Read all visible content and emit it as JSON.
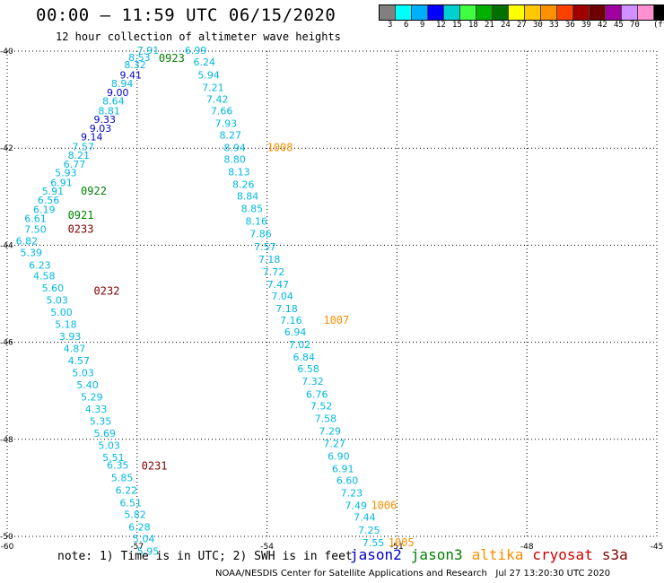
{
  "header": {
    "title": "00:00 – 11:59 UTC 06/15/2020",
    "subtitle": "12 hour collection of altimeter wave heights"
  },
  "colorbar": {
    "swatches": [
      "#808080",
      "#00ffff",
      "#00b0ff",
      "#0000ff",
      "#00d0d0",
      "#40ff40",
      "#00b000",
      "#007000",
      "#ffff00",
      "#ffc800",
      "#ff9000",
      "#ff4000",
      "#a00000",
      "#700000",
      "#a000a0",
      "#d090ff",
      "#ff90d0",
      "#000000"
    ],
    "labels": [
      "3",
      "6",
      "9",
      "12",
      "15",
      "18",
      "21",
      "24",
      "27",
      "30",
      "33",
      "36",
      "39",
      "42",
      "45",
      "70"
    ],
    "unit": "(ft)"
  },
  "chart_data": {
    "type": "scatter",
    "title": "00:00 – 11:59 UTC 06/15/2020",
    "subtitle": "12 hour collection of altimeter wave heights",
    "xlim": [
      -60,
      -45
    ],
    "ylim": [
      -50,
      -40
    ],
    "xticks": [
      "-60",
      "-57",
      "-54",
      "-51",
      "-48",
      "-45"
    ],
    "yticks": [
      "-40",
      "-42",
      "-44",
      "-46",
      "-48",
      "-50"
    ],
    "grid": true,
    "series": [
      {
        "name": "jason3 (pass 0923/0922/0921)",
        "color_group": "a",
        "points": [
          {
            "x": -57.0,
            "y": -40.06,
            "v": "7.91"
          },
          {
            "x": -57.2,
            "y": -40.2,
            "v": "8.53"
          },
          {
            "x": -57.3,
            "y": -40.35,
            "v": "8.32"
          },
          {
            "x": -57.4,
            "y": -40.56,
            "v": "9.41"
          },
          {
            "x": -57.6,
            "y": -40.74,
            "v": "8.94"
          },
          {
            "x": -57.7,
            "y": -40.92,
            "v": "9.00"
          },
          {
            "x": -57.8,
            "y": -41.1,
            "v": "8.64"
          },
          {
            "x": -57.9,
            "y": -41.3,
            "v": "8.81"
          },
          {
            "x": -58.0,
            "y": -41.48,
            "v": "9.33"
          },
          {
            "x": -58.1,
            "y": -41.66,
            "v": "9.03"
          },
          {
            "x": -58.3,
            "y": -41.84,
            "v": "9.14"
          },
          {
            "x": -58.5,
            "y": -42.04,
            "v": "7.57"
          },
          {
            "x": -58.6,
            "y": -42.22,
            "v": "8.21"
          },
          {
            "x": -58.7,
            "y": -42.4,
            "v": "6.77"
          },
          {
            "x": -58.9,
            "y": -42.58,
            "v": "5.93"
          },
          {
            "x": -59.0,
            "y": -42.78,
            "v": "6.91"
          },
          {
            "x": -59.2,
            "y": -42.96,
            "v": "5.91"
          },
          {
            "x": -59.3,
            "y": -43.14,
            "v": "6.56"
          },
          {
            "x": -59.4,
            "y": -43.34,
            "v": "6.19"
          },
          {
            "x": -59.6,
            "y": -43.52,
            "v": "6.61"
          },
          {
            "x": -59.6,
            "y": -43.74,
            "v": "7.50"
          }
        ]
      },
      {
        "name": "s3a (pass 0233/0232/0231)",
        "color_group": "b",
        "points": [
          {
            "x": -59.8,
            "y": -43.98,
            "v": "6.82"
          },
          {
            "x": -59.7,
            "y": -44.22,
            "v": "5.39"
          },
          {
            "x": -59.5,
            "y": -44.48,
            "v": "6.23"
          },
          {
            "x": -59.4,
            "y": -44.7,
            "v": "4.58"
          },
          {
            "x": -59.2,
            "y": -44.95,
            "v": "5.60"
          },
          {
            "x": -59.1,
            "y": -45.2,
            "v": "5.03"
          },
          {
            "x": -59.0,
            "y": -45.45,
            "v": "5.00"
          },
          {
            "x": -58.9,
            "y": -45.7,
            "v": "5.18"
          },
          {
            "x": -58.8,
            "y": -45.95,
            "v": "3.93"
          },
          {
            "x": -58.7,
            "y": -46.2,
            "v": "4.87"
          },
          {
            "x": -58.6,
            "y": -46.45,
            "v": "4.57"
          },
          {
            "x": -58.5,
            "y": -46.7,
            "v": "5.03"
          },
          {
            "x": -58.4,
            "y": -46.95,
            "v": "5.40"
          },
          {
            "x": -58.3,
            "y": -47.2,
            "v": "5.29"
          },
          {
            "x": -58.2,
            "y": -47.45,
            "v": "4.33"
          },
          {
            "x": -58.1,
            "y": -47.7,
            "v": "5.35"
          },
          {
            "x": -58.0,
            "y": -47.95,
            "v": "5.69"
          },
          {
            "x": -57.9,
            "y": -48.2,
            "v": "5.03"
          },
          {
            "x": -57.8,
            "y": -48.45,
            "v": "5.51"
          },
          {
            "x": -57.7,
            "y": -48.6,
            "v": "6.35"
          },
          {
            "x": -57.6,
            "y": -48.86,
            "v": "5.85"
          },
          {
            "x": -57.5,
            "y": -49.12,
            "v": "6.22"
          },
          {
            "x": -57.4,
            "y": -49.38,
            "v": "6.51"
          },
          {
            "x": -57.3,
            "y": -49.62,
            "v": "5.82"
          },
          {
            "x": -57.2,
            "y": -49.88,
            "v": "6.28"
          },
          {
            "x": -57.1,
            "y": -50.12,
            "v": "5.04"
          },
          {
            "x": -57.0,
            "y": -50.38,
            "v": "5.95"
          }
        ]
      },
      {
        "name": "altika (pass 1008/1007/1006/1005)",
        "color_group": "c",
        "points": [
          {
            "x": -55.9,
            "y": -40.06,
            "v": "6.99"
          },
          {
            "x": -55.7,
            "y": -40.3,
            "v": "6.24"
          },
          {
            "x": -55.6,
            "y": -40.56,
            "v": "5.94"
          },
          {
            "x": -55.5,
            "y": -40.82,
            "v": "7.21"
          },
          {
            "x": -55.4,
            "y": -41.06,
            "v": "7.42"
          },
          {
            "x": -55.3,
            "y": -41.3,
            "v": "7.66"
          },
          {
            "x": -55.2,
            "y": -41.56,
            "v": "7.93"
          },
          {
            "x": -55.1,
            "y": -41.8,
            "v": "8.27"
          },
          {
            "x": -55.0,
            "y": -42.06,
            "v": "8.94"
          },
          {
            "x": -55.0,
            "y": -42.3,
            "v": "8.80"
          },
          {
            "x": -54.9,
            "y": -42.56,
            "v": "8.13"
          },
          {
            "x": -54.8,
            "y": -42.82,
            "v": "8.26"
          },
          {
            "x": -54.7,
            "y": -43.06,
            "v": "8.84"
          },
          {
            "x": -54.6,
            "y": -43.32,
            "v": "8.85"
          },
          {
            "x": -54.5,
            "y": -43.58,
            "v": "8.16"
          },
          {
            "x": -54.4,
            "y": -43.84,
            "v": "7.86"
          },
          {
            "x": -54.3,
            "y": -44.1,
            "v": "7.57"
          },
          {
            "x": -54.2,
            "y": -44.36,
            "v": "7.18"
          },
          {
            "x": -54.1,
            "y": -44.62,
            "v": "7.72"
          },
          {
            "x": -54.0,
            "y": -44.88,
            "v": "7.47"
          },
          {
            "x": -53.9,
            "y": -45.12,
            "v": "7.04"
          },
          {
            "x": -53.8,
            "y": -45.38,
            "v": "7.18"
          },
          {
            "x": -53.7,
            "y": -45.62,
            "v": "7.16"
          },
          {
            "x": -53.6,
            "y": -45.86,
            "v": "6.94"
          },
          {
            "x": -53.5,
            "y": -46.12,
            "v": "7.02"
          },
          {
            "x": -53.4,
            "y": -46.38,
            "v": "6.84"
          },
          {
            "x": -53.3,
            "y": -46.62,
            "v": "6.58"
          },
          {
            "x": -53.2,
            "y": -46.88,
            "v": "7.32"
          },
          {
            "x": -53.1,
            "y": -47.14,
            "v": "6.76"
          },
          {
            "x": -53.0,
            "y": -47.38,
            "v": "7.52"
          },
          {
            "x": -52.9,
            "y": -47.64,
            "v": "7.58"
          },
          {
            "x": -52.8,
            "y": -47.9,
            "v": "7.29"
          },
          {
            "x": -52.7,
            "y": -48.16,
            "v": "7.27"
          },
          {
            "x": -52.6,
            "y": -48.42,
            "v": "6.90"
          },
          {
            "x": -52.5,
            "y": -48.68,
            "v": "6.91"
          },
          {
            "x": -52.4,
            "y": -48.92,
            "v": "6.60"
          },
          {
            "x": -52.3,
            "y": -49.18,
            "v": "7.23"
          },
          {
            "x": -52.2,
            "y": -49.44,
            "v": "7.49"
          },
          {
            "x": -52.0,
            "y": -49.68,
            "v": "7.44"
          },
          {
            "x": -51.9,
            "y": -49.94,
            "v": "7.25"
          },
          {
            "x": -51.8,
            "y": -50.2,
            "v": "7.55"
          }
        ]
      }
    ],
    "annotations": [
      {
        "text": "0923",
        "x": -56.5,
        "y": -40.22,
        "color": "#008000"
      },
      {
        "text": "0922",
        "x": -58.3,
        "y": -42.96,
        "color": "#008000"
      },
      {
        "text": "0921",
        "x": -58.6,
        "y": -43.46,
        "color": "#008000"
      },
      {
        "text": "0233",
        "x": -58.6,
        "y": -43.74,
        "color": "#800000"
      },
      {
        "text": "0232",
        "x": -58.0,
        "y": -45.02,
        "color": "#800000"
      },
      {
        "text": "0231",
        "x": -56.9,
        "y": -48.62,
        "color": "#800000"
      },
      {
        "text": "1008",
        "x": -54.0,
        "y": -42.06,
        "color": "#ff8c00"
      },
      {
        "text": "1007",
        "x": -52.7,
        "y": -45.62,
        "color": "#ff8c00"
      },
      {
        "text": "1006",
        "x": -51.6,
        "y": -49.44,
        "color": "#ff8c00"
      },
      {
        "text": "1005",
        "x": -51.2,
        "y": -50.2,
        "color": "#ff8c00"
      }
    ]
  },
  "footer": {
    "note": "note: 1) Time is in UTC; 2) SWH is in feet",
    "legend": [
      {
        "label": "jason2",
        "color": "#0000cc"
      },
      {
        "label": "jason3",
        "color": "#008000"
      },
      {
        "label": "altika",
        "color": "#ff8c00"
      },
      {
        "label": "cryosat",
        "color": "#cc0000"
      },
      {
        "label": "s3a",
        "color": "#800000"
      }
    ],
    "credit": "NOAA/NESDIS Center for Satellite Applications and Research   Jul 27 13:20:30 UTC 2020"
  }
}
